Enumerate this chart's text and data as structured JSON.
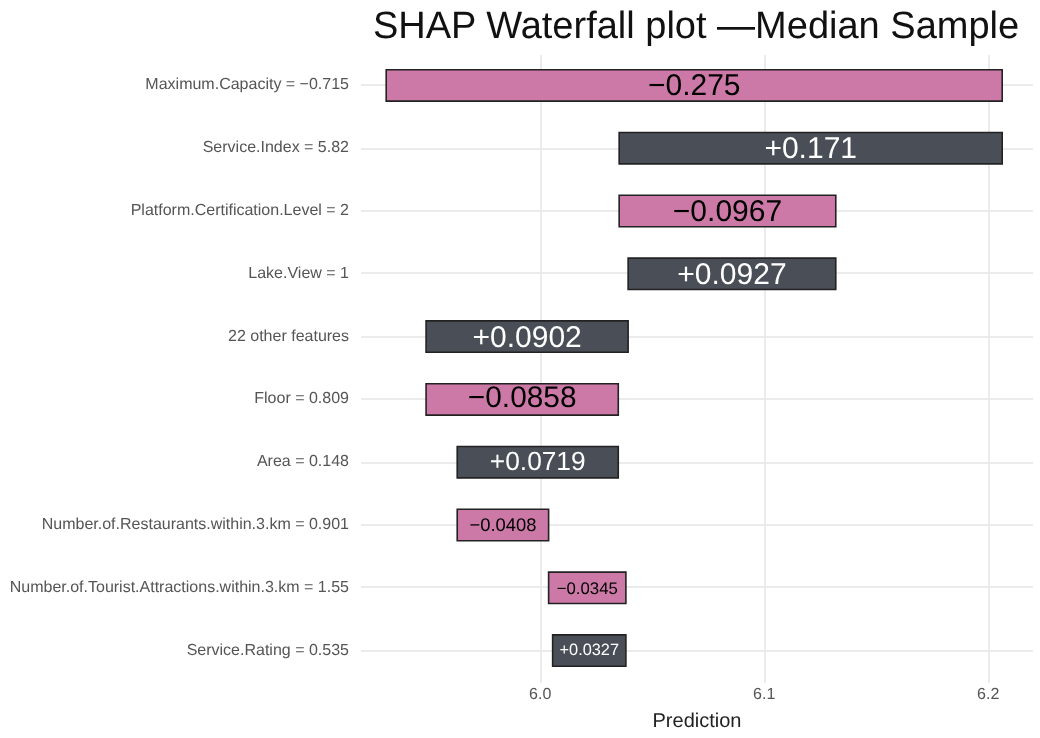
{
  "chart_data": {
    "type": "bar",
    "orientation": "horizontal",
    "title": "SHAP Waterfall plot —Median Sample",
    "xlabel": "Prediction",
    "categories": [
      "Maximum.Capacity = −0.715",
      "Service.Index = 5.82",
      "Platform.Certification.Level = 2",
      "Lake.View = 1",
      "22 other features",
      "Floor = 0.809",
      "Area = 0.148",
      "Number.of.Restaurants.within.3.km = 0.901",
      "Number.of.Tourist.Attractions.within.3.km = 1.55",
      "Service.Rating = 0.535"
    ],
    "values": [
      -0.275,
      0.171,
      -0.0967,
      0.0927,
      0.0902,
      -0.0858,
      0.0719,
      -0.0408,
      -0.0345,
      0.0327
    ],
    "base": [
      6.2067,
      6.0357,
      6.1324,
      6.0397,
      5.9495,
      6.0353,
      5.9634,
      6.0042,
      6.0387,
      6.006
    ],
    "colors": [
      "#cc79a7",
      "#4a4f57",
      "#cc79a7",
      "#4a4f57",
      "#4a4f57",
      "#cc79a7",
      "#4a4f57",
      "#cc79a7",
      "#cc79a7",
      "#4a4f57"
    ],
    "value_labels": [
      "−0.275",
      "+0.171",
      "−0.0967",
      "+0.0927",
      "+0.0902",
      "−0.0858",
      "+0.0719",
      "−0.0408",
      "−0.0345",
      "+0.0327"
    ],
    "xlim": [
      5.92,
      6.22
    ],
    "xticks": [
      {
        "value": 6.0,
        "label": "6.0"
      },
      {
        "value": 6.1,
        "label": "6.1"
      },
      {
        "value": 6.2,
        "label": "6.2"
      }
    ],
    "grid": true,
    "legend": false
  }
}
